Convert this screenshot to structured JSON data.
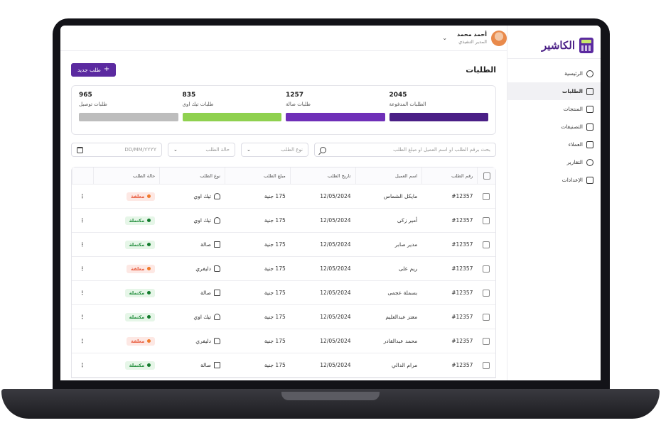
{
  "app": {
    "name": "الكاشير",
    "logo_icon": "cash-register-icon",
    "accent": "#5b2aa0"
  },
  "sidebar": {
    "items": [
      {
        "label": "الرئيسية",
        "icon": "home-icon",
        "active": false
      },
      {
        "label": "الطلبات",
        "icon": "orders-icon",
        "active": true
      },
      {
        "label": "المنتجات",
        "icon": "basket-icon",
        "active": false
      },
      {
        "label": "التصنيفات",
        "icon": "grid-icon",
        "active": false
      },
      {
        "label": "العملاء",
        "icon": "users-icon",
        "active": false
      },
      {
        "label": "التقارير",
        "icon": "chart-icon",
        "active": false
      },
      {
        "label": "الإعدادات",
        "icon": "gear-icon",
        "active": false
      }
    ]
  },
  "user": {
    "name": "أحمد محمد",
    "role": "المدير التنفيذي"
  },
  "page": {
    "title": "الطلبات",
    "new_order_label": "طلب جديد"
  },
  "stats": [
    {
      "value": "2045",
      "label": "الطلبات المدفوعة",
      "color": "#4a1f86"
    },
    {
      "value": "1257",
      "label": "طلبات صالة",
      "color": "#6f2fb8"
    },
    {
      "value": "835",
      "label": "طلبات تيك اوي",
      "color": "#8fd14f"
    },
    {
      "value": "965",
      "label": "طلبات توصيل",
      "color": "#bdbdbd"
    }
  ],
  "filters": {
    "search_placeholder": "بحث برقم الطلب او اسم العميل او مبلغ الطلب",
    "type_placeholder": "نوع الطلب",
    "status_placeholder": "حالة الطلب",
    "date_placeholder": "DD/MM/YYYY"
  },
  "table": {
    "columns": {
      "number": "رقم الطلب",
      "customer": "اسم العميل",
      "date": "تاريخ الطلب",
      "amount": "مبلغ الطلب",
      "type": "نوع الطلب",
      "status": "حالة الطلب"
    },
    "rows": [
      {
        "number": "#12357",
        "customer": "مايكل الشماس",
        "date": "12/05/2024",
        "amount": "175 جنية",
        "type": "تيك اوي",
        "type_icon": "bag-icon",
        "status": "معلقة",
        "status_kind": "pending"
      },
      {
        "number": "#12357",
        "customer": "أمير زكى",
        "date": "12/05/2024",
        "amount": "175 جنية",
        "type": "تيك اوي",
        "type_icon": "bag-icon",
        "status": "مكتملة",
        "status_kind": "done"
      },
      {
        "number": "#12357",
        "customer": "مدير صابر",
        "date": "12/05/2024",
        "amount": "175 جنية",
        "type": "صالة",
        "type_icon": "store-icon",
        "status": "مكتملة",
        "status_kind": "done"
      },
      {
        "number": "#12357",
        "customer": "ريم على",
        "date": "12/05/2024",
        "amount": "175 جنية",
        "type": "دليفري",
        "type_icon": "truck-icon",
        "status": "معلقة",
        "status_kind": "pending"
      },
      {
        "number": "#12357",
        "customer": "بسملة عجمى",
        "date": "12/05/2024",
        "amount": "175 جنية",
        "type": "صالة",
        "type_icon": "store-icon",
        "status": "مكتملة",
        "status_kind": "done"
      },
      {
        "number": "#12357",
        "customer": "معتز عبدالعليم",
        "date": "12/05/2024",
        "amount": "175 جنية",
        "type": "تيك اوي",
        "type_icon": "bag-icon",
        "status": "مكتملة",
        "status_kind": "done"
      },
      {
        "number": "#12357",
        "customer": "محمد عبدالقادر",
        "date": "12/05/2024",
        "amount": "175 جنية",
        "type": "دليفري",
        "type_icon": "truck-icon",
        "status": "معلقة",
        "status_kind": "pending"
      },
      {
        "number": "#12357",
        "customer": "مرام الدالي",
        "date": "12/05/2024",
        "amount": "175 جنية",
        "type": "صالة",
        "type_icon": "store-icon",
        "status": "مكتملة",
        "status_kind": "done"
      }
    ]
  }
}
